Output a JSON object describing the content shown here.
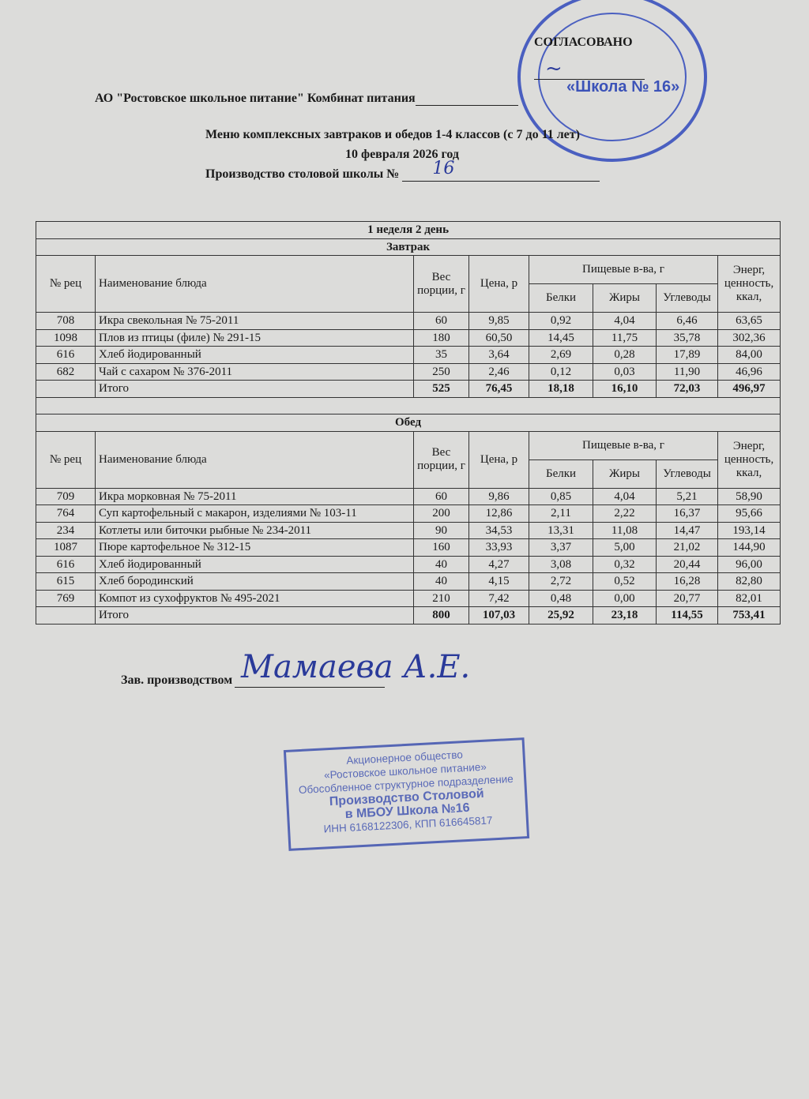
{
  "header": {
    "approved": "СОГЛАСОВАНО",
    "organization": "АО \"Ростовское школьное питание\" Комбинат питания",
    "menu_title": "Меню комплексных завтраков и обедов 1-4 классов (с 7 до 11 лет)",
    "date": "10 февраля 2026 год",
    "production_label": "Производство столовой школы №",
    "school_number_handwritten": "16"
  },
  "table": {
    "week_day": "1 неделя 2 день",
    "columns": {
      "recipe_no": "№ рец",
      "dish_name": "Наименование блюда",
      "weight": "Вес порции, г",
      "price": "Цена, р",
      "nutrients": "Пищевые в-ва, г",
      "proteins": "Белки",
      "fats": "Жиры",
      "carbs": "Углеводы",
      "energy": "Энерг, ценность, ккал,"
    },
    "breakfast": {
      "title": "Завтрак",
      "rows": [
        [
          "708",
          "Икра свекольная № 75-2011",
          "60",
          "9,85",
          "0,92",
          "4,04",
          "6,46",
          "63,65"
        ],
        [
          "1098",
          "Плов из птицы (филе)  № 291-15",
          "180",
          "60,50",
          "14,45",
          "11,75",
          "35,78",
          "302,36"
        ],
        [
          "616",
          "Хлеб йодированный",
          "35",
          "3,64",
          "2,69",
          "0,28",
          "17,89",
          "84,00"
        ],
        [
          "682",
          "Чай с сахаром № 376-2011",
          "250",
          "2,46",
          "0,12",
          "0,03",
          "11,90",
          "46,96"
        ]
      ],
      "total": [
        "",
        "Итого",
        "525",
        "76,45",
        "18,18",
        "16,10",
        "72,03",
        "496,97"
      ]
    },
    "lunch": {
      "title": "Обед",
      "rows": [
        [
          "709",
          "Икра морковная № 75-2011",
          "60",
          "9,86",
          "0,85",
          "4,04",
          "5,21",
          "58,90"
        ],
        [
          "764",
          "Суп картофельный с макарон, изделиями № 103-11",
          "200",
          "12,86",
          "2,11",
          "2,22",
          "16,37",
          "95,66"
        ],
        [
          "234",
          "Котлеты или биточки рыбные № 234-2011",
          "90",
          "34,53",
          "13,31",
          "11,08",
          "14,47",
          "193,14"
        ],
        [
          "1087",
          "Пюре картофельное № 312-15",
          "160",
          "33,93",
          "3,37",
          "5,00",
          "21,02",
          "144,90"
        ],
        [
          "616",
          "Хлеб йодированный",
          "40",
          "4,27",
          "3,08",
          "0,32",
          "20,44",
          "96,00"
        ],
        [
          "615",
          "Хлеб бородинский",
          "40",
          "4,15",
          "2,72",
          "0,52",
          "16,28",
          "82,80"
        ],
        [
          "769",
          "Компот из сухофруктов № 495-2021",
          "210",
          "7,42",
          "0,48",
          "0,00",
          "20,77",
          "82,01"
        ]
      ],
      "total": [
        "",
        "Итого",
        "800",
        "107,03",
        "25,92",
        "23,18",
        "114,55",
        "753,41"
      ]
    }
  },
  "footer": {
    "manager_label": "Зав. производством",
    "signature": "Мамаева А.Е."
  },
  "stamps": {
    "round": "«Школа № 16»",
    "rect": [
      "Акционерное общество",
      "«Ростовское школьное питание»",
      "Обособленное структурное подразделение",
      "Производство Столовой",
      "в МБОУ Школа №16",
      "ИНН 6168122306,  КПП 616645817"
    ],
    "stamp_color": "#4a5fc0"
  }
}
